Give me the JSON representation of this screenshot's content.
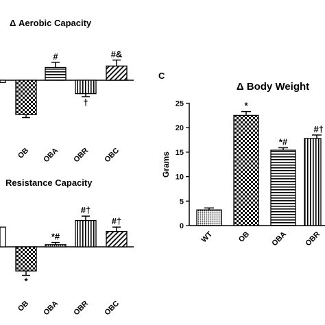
{
  "chart_data": [
    {
      "type": "bar",
      "title": "Δ Aerobic Capacity",
      "categories": [
        "OB",
        "OBA",
        "OBR",
        "OBC"
      ],
      "values": [
        -23,
        8.5,
        -9,
        9.5
      ],
      "errors": [
        2,
        3.5,
        2,
        4
      ],
      "annotations": [
        "",
        "#",
        "†",
        "#&"
      ],
      "first_bar_visible_fragment": {
        "value": -1.5
      },
      "ylim": [
        -27,
        13
      ],
      "grid": false
    },
    {
      "type": "bar",
      "title": "Resistance Capacity",
      "categories": [
        "OB",
        "OBA",
        "OBR",
        "OBC"
      ],
      "values": [
        -22,
        2,
        24,
        14
      ],
      "errors": [
        4,
        2,
        4,
        4
      ],
      "annotations": [
        "*",
        "*#",
        "#†",
        "#†"
      ],
      "first_bar_visible_fragment": {
        "value": 18
      },
      "ylim": [
        -30,
        30
      ],
      "grid": false
    },
    {
      "type": "bar",
      "panel_label": "C",
      "title": "Δ Body Weight",
      "ylabel": "Grams",
      "categories": [
        "WT",
        "OB",
        "OBA",
        "OBR"
      ],
      "values": [
        3.2,
        22.5,
        15.4,
        17.8
      ],
      "errors": [
        0.4,
        0.8,
        0.5,
        0.7
      ],
      "annotations": [
        "",
        "*",
        "*#",
        "#†"
      ],
      "yticks": [
        "0",
        "5",
        "10",
        "15",
        "20",
        "25"
      ],
      "ylim": [
        0,
        25
      ],
      "grid": false
    }
  ]
}
